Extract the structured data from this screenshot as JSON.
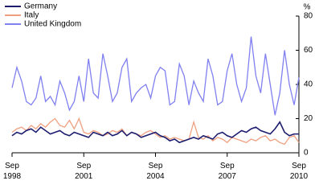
{
  "chart_data": {
    "type": "line",
    "y_axis_label": "%",
    "x": [
      1998.7,
      1998.9,
      1999.1,
      1999.3,
      1999.5,
      1999.7,
      1999.9,
      2000.1,
      2000.3,
      2000.5,
      2000.7,
      2000.9,
      2001.1,
      2001.3,
      2001.5,
      2001.7,
      2001.9,
      2002.1,
      2002.3,
      2002.5,
      2002.7,
      2002.9,
      2003.1,
      2003.3,
      2003.5,
      2003.7,
      2003.9,
      2004.1,
      2004.3,
      2004.5,
      2004.7,
      2004.9,
      2005.1,
      2005.3,
      2005.5,
      2005.7,
      2005.9,
      2006.1,
      2006.3,
      2006.5,
      2006.7,
      2006.9,
      2007.1,
      2007.3,
      2007.5,
      2007.7,
      2007.9,
      2008.1,
      2008.3,
      2008.5,
      2008.7,
      2008.9,
      2009.1,
      2009.3,
      2009.5,
      2009.7,
      2009.9,
      2010.1,
      2010.3,
      2010.5,
      2010.7
    ],
    "series": [
      {
        "name": "Germany",
        "color": "#1c1c6e",
        "values": [
          10,
          12,
          11,
          13,
          14,
          12,
          15,
          13,
          11,
          12,
          13,
          11,
          10,
          12,
          11,
          10,
          9,
          12,
          11,
          10,
          12,
          10,
          11,
          13,
          10,
          12,
          11,
          9,
          10,
          11,
          12,
          10,
          9,
          7,
          8,
          6,
          7,
          8,
          9,
          8,
          10,
          9,
          8,
          11,
          12,
          10,
          9,
          11,
          13,
          12,
          14,
          15,
          13,
          12,
          11,
          14,
          18,
          12,
          10,
          11,
          11
        ]
      },
      {
        "name": "Italy",
        "color": "#f0a080",
        "values": [
          12,
          14,
          15,
          13,
          16,
          14,
          17,
          15,
          18,
          20,
          16,
          15,
          19,
          14,
          20,
          12,
          11,
          13,
          12,
          10,
          11,
          13,
          12,
          14,
          10,
          12,
          11,
          10,
          12,
          13,
          11,
          9,
          10,
          8,
          9,
          8,
          7,
          8,
          18,
          9,
          8,
          10,
          7,
          9,
          8,
          6,
          9,
          8,
          7,
          6,
          8,
          7,
          9,
          10,
          7,
          8,
          6,
          5,
          9,
          10,
          6
        ]
      },
      {
        "name": "United Kingdom",
        "color": "#8080f0",
        "values": [
          38,
          50,
          42,
          30,
          28,
          32,
          45,
          30,
          33,
          28,
          42,
          35,
          25,
          30,
          45,
          30,
          55,
          35,
          32,
          58,
          45,
          30,
          35,
          50,
          55,
          30,
          35,
          38,
          40,
          32,
          45,
          50,
          48,
          28,
          30,
          52,
          45,
          28,
          42,
          35,
          30,
          55,
          45,
          28,
          30,
          48,
          58,
          40,
          30,
          38,
          68,
          45,
          35,
          58,
          40,
          22,
          35,
          60,
          40,
          28,
          44
        ]
      }
    ],
    "xlim": [
      1998.7,
      2010.7
    ],
    "xticks": [
      {
        "value": 1998.7,
        "label": "Sep 1998"
      },
      {
        "value": 2001.7,
        "label": "Sep 2001"
      },
      {
        "value": 2004.7,
        "label": "Sep 2004"
      },
      {
        "value": 2007.7,
        "label": "Sep 2007"
      },
      {
        "value": 2010.7,
        "label": "Sep 2010"
      }
    ],
    "ylim": [
      0,
      80
    ],
    "yticks": [
      0,
      20,
      40,
      60,
      80
    ],
    "legend": "top-left"
  }
}
